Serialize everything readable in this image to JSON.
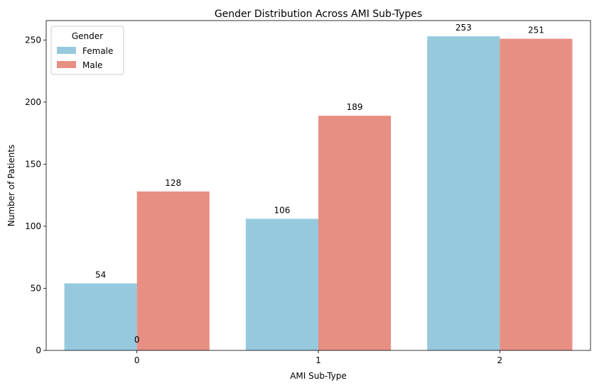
{
  "chart_data": {
    "type": "bar",
    "title": "Gender Distribution Across AMI Sub-Types",
    "xlabel": "AMI Sub-Type",
    "ylabel": "Number of Patients",
    "categories": [
      "0",
      "1",
      "2"
    ],
    "series": [
      {
        "name": "Female",
        "values": [
          54,
          106,
          253
        ],
        "color": "#96c9de"
      },
      {
        "name": "Male",
        "values": [
          128,
          189,
          251
        ],
        "color": "#e88f83"
      }
    ],
    "extra_labels": [
      {
        "text": "0",
        "category": "0"
      }
    ],
    "ylim": [
      0,
      265.65
    ],
    "yticks": [
      0,
      50,
      100,
      150,
      200,
      250
    ],
    "grid": false,
    "legend": {
      "title": "Gender",
      "position": "top-left"
    }
  }
}
